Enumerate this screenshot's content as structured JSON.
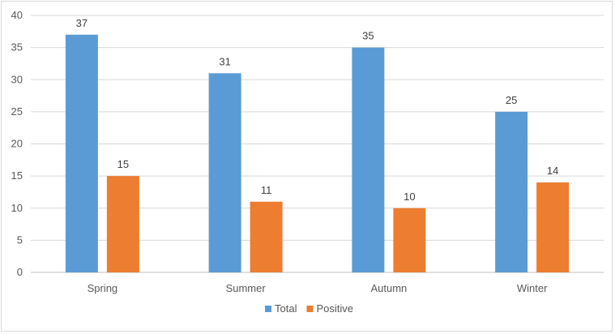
{
  "chart_data": {
    "type": "bar",
    "categories": [
      "Spring",
      "Summer",
      "Autumn",
      "Winter"
    ],
    "series": [
      {
        "name": "Total",
        "values": [
          37,
          31,
          35,
          25
        ],
        "color": "#5b9bd5"
      },
      {
        "name": "Positive",
        "values": [
          15,
          11,
          10,
          14
        ],
        "color": "#ed7d31"
      }
    ],
    "title": "",
    "xlabel": "",
    "ylabel": "",
    "ylim": [
      0,
      40
    ],
    "yticks": [
      0,
      5,
      10,
      15,
      20,
      25,
      30,
      35,
      40
    ],
    "grid": true,
    "legend": "bottom",
    "data_labels": true
  }
}
